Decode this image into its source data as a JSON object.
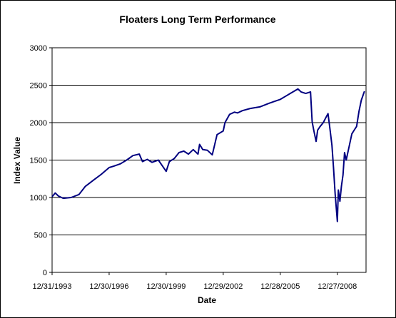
{
  "chart_data": {
    "type": "line",
    "title": "Floaters Long Term Performance",
    "xlabel": "Date",
    "ylabel": "Index Value",
    "ylim": [
      0,
      3000
    ],
    "yticks": [
      0,
      500,
      1000,
      1500,
      2000,
      2500,
      3000
    ],
    "xlim": [
      "12/31/1993",
      "2010-07-01"
    ],
    "xticks": [
      "12/31/1993",
      "12/30/1996",
      "12/30/1999",
      "12/29/2002",
      "12/28/2005",
      "12/27/2008"
    ],
    "grid": "horizontal",
    "legend": "none",
    "line_color": "#000080",
    "series": [
      {
        "x": [
          "1993-12-31",
          "1994-03-01",
          "1994-05-01",
          "1994-08-01",
          "1995-01-01",
          "1995-06-01",
          "1995-10-01",
          "1996-03-01",
          "1996-08-01",
          "1996-12-30",
          "1997-04-01",
          "1997-08-01",
          "1997-12-01",
          "1998-04-01",
          "1998-08-01",
          "1998-10-01",
          "1999-01-01",
          "1999-04-01",
          "1999-08-01",
          "1999-12-30",
          "2000-03-01",
          "2000-06-01",
          "2000-09-01",
          "2000-12-01",
          "2001-03-01",
          "2001-06-01",
          "2001-09-01",
          "2001-10-01",
          "2001-12-01",
          "2002-03-01",
          "2002-06-01",
          "2002-09-01",
          "2002-12-29",
          "2003-02-01",
          "2003-05-01",
          "2003-08-01",
          "2003-10-01",
          "2004-01-01",
          "2004-06-01",
          "2004-12-01",
          "2005-06-01",
          "2005-12-28",
          "2006-04-01",
          "2006-08-01",
          "2006-12-01",
          "2007-02-01",
          "2007-05-01",
          "2007-08-01",
          "2007-09-01",
          "2007-10-01",
          "2007-11-15",
          "2007-12-15",
          "2008-02-01",
          "2008-04-01",
          "2008-05-15",
          "2008-07-01",
          "2008-08-01",
          "2008-09-15",
          "2008-10-15",
          "2008-11-15",
          "2008-12-27",
          "2009-01-15",
          "2009-02-15",
          "2009-03-15",
          "2009-04-15",
          "2009-05-15",
          "2009-06-15",
          "2009-08-01",
          "2009-10-01",
          "2009-11-15",
          "2010-01-01",
          "2010-02-15",
          "2010-04-01",
          "2010-06-01"
        ],
        "y": [
          1010,
          1060,
          1020,
          990,
          1000,
          1040,
          1150,
          1230,
          1310,
          1400,
          1420,
          1450,
          1500,
          1560,
          1580,
          1480,
          1510,
          1470,
          1500,
          1350,
          1480,
          1520,
          1600,
          1620,
          1580,
          1640,
          1580,
          1710,
          1640,
          1630,
          1570,
          1840,
          1890,
          2000,
          2110,
          2140,
          2130,
          2160,
          2190,
          2210,
          2260,
          2310,
          2350,
          2400,
          2450,
          2410,
          2390,
          2410,
          2010,
          1900,
          1750,
          1900,
          1950,
          2000,
          2060,
          2120,
          1950,
          1700,
          1400,
          1050,
          680,
          1100,
          950,
          1150,
          1300,
          1600,
          1500,
          1650,
          1850,
          1900,
          1950,
          2150,
          2300,
          2420
        ]
      }
    ]
  }
}
